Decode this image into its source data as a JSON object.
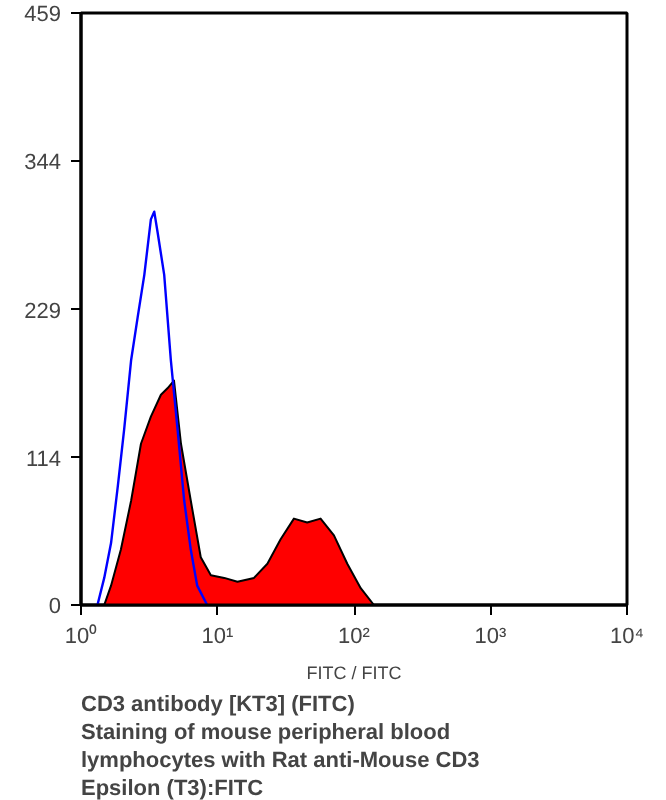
{
  "chart_data": {
    "type": "area",
    "log": "x",
    "grid": false,
    "xlabel": "FITC / FITC",
    "xlim": [
      1,
      10000
    ],
    "ylim": [
      0,
      459
    ],
    "xticks": [
      {
        "value": 1,
        "label": "10⁰"
      },
      {
        "value": 10,
        "label": "10¹"
      },
      {
        "value": 100,
        "label": "10²"
      },
      {
        "value": 1000,
        "label": "10³"
      },
      {
        "value": 10000,
        "label": "10⁴"
      }
    ],
    "yticks": [
      0,
      114,
      229,
      344,
      459
    ],
    "series": [
      {
        "color": "#ff0000",
        "x": [
          1.48,
          1.66,
          1.96,
          2.33,
          2.75,
          3.25,
          3.85,
          4.3,
          4.8,
          5.4,
          6.37,
          7.54,
          8.94,
          11.2,
          14.0,
          18.5,
          23.2,
          29.0,
          36.3,
          45.4,
          56.9,
          71.3,
          89.3,
          112,
          140
        ],
        "values": [
          0,
          15,
          43,
          81,
          125,
          146,
          163,
          168,
          174,
          125,
          81,
          37,
          23,
          21,
          18,
          21,
          32,
          51,
          67,
          64,
          67,
          54,
          32,
          13,
          0
        ]
      },
      {
        "type": "line",
        "color": "#0000ff",
        "x": [
          1.32,
          1.48,
          1.66,
          1.86,
          2.07,
          2.33,
          2.6,
          2.91,
          3.25,
          3.44,
          3.64,
          4.07,
          4.55,
          5.1,
          5.7,
          6.37,
          7.1,
          8.4
        ],
        "values": [
          0,
          21,
          48,
          92,
          136,
          190,
          223,
          256,
          299,
          305,
          289,
          256,
          190,
          136,
          81,
          43,
          15,
          0
        ]
      }
    ],
    "annotations": [
      "CD3 antibody [KT3] (FITC)",
      "Staining of mouse peripheral blood",
      "lymphocytes with Rat anti-Mouse CD3",
      "Epsilon (T3):FITC"
    ]
  }
}
